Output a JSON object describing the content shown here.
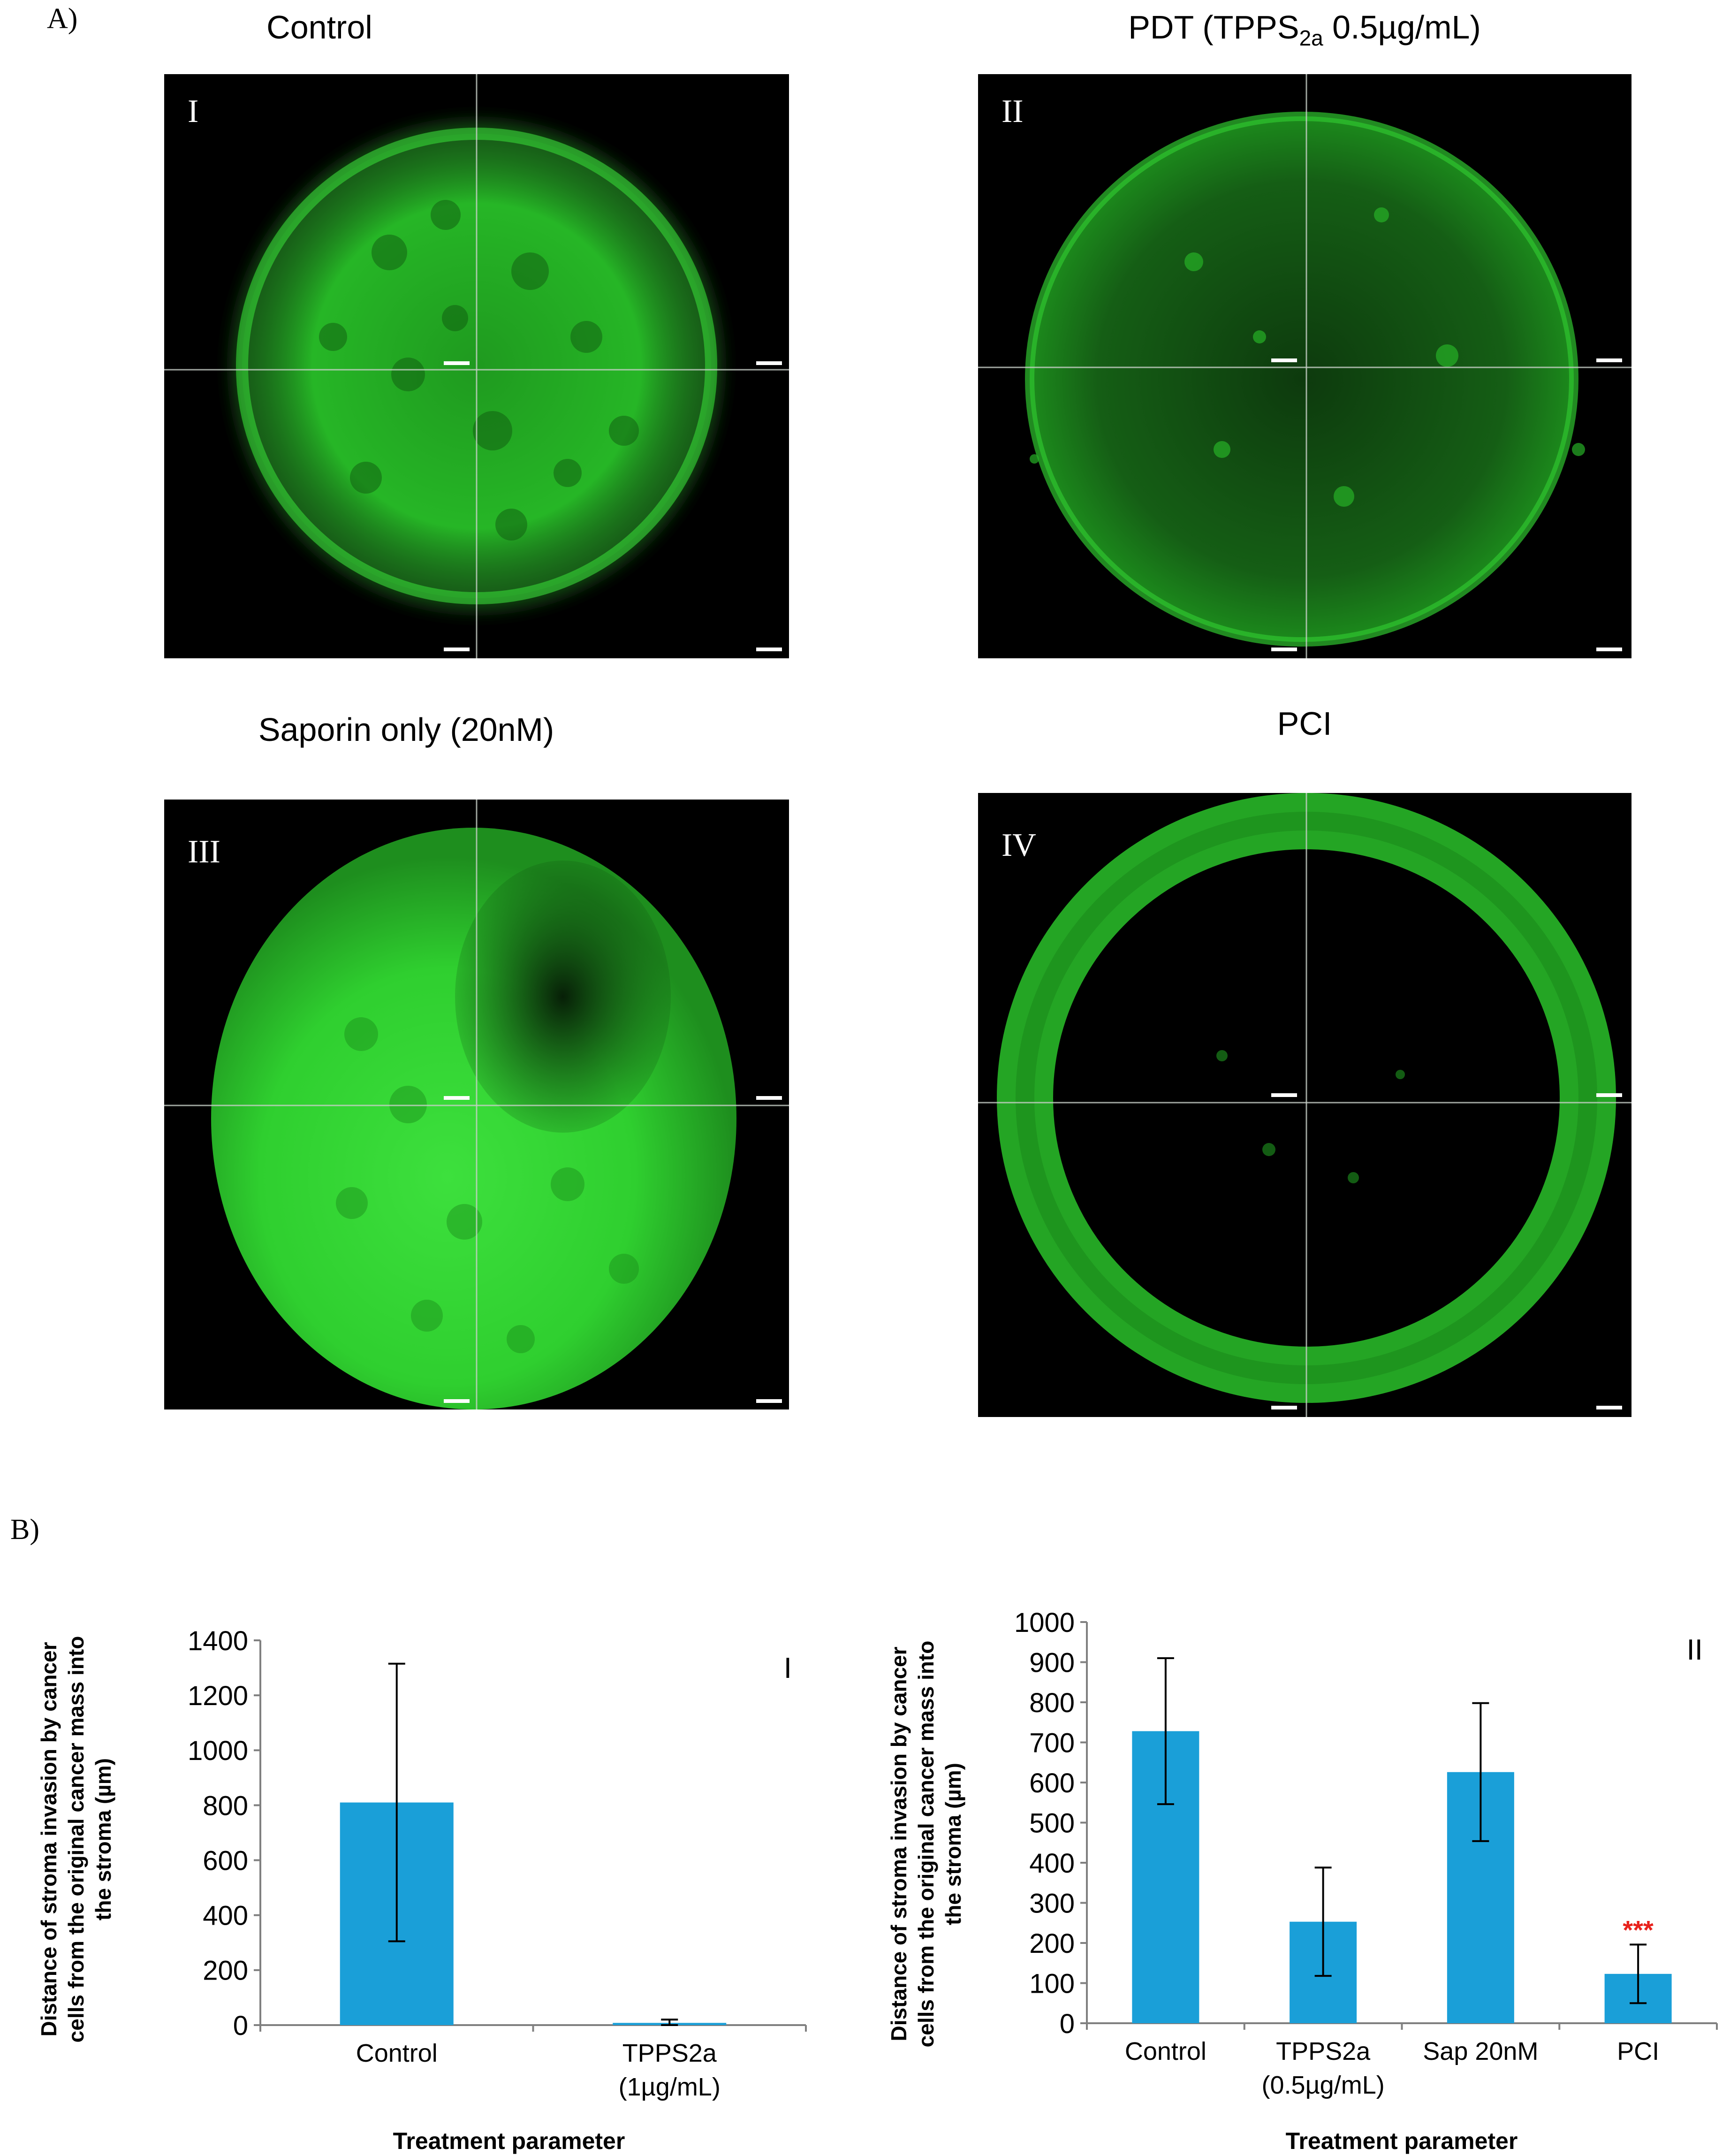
{
  "panel_labels": {
    "a": "A)",
    "b": "B)"
  },
  "micrographs": [
    {
      "id": "I",
      "title": "Control",
      "sub": "",
      "title_tail": ""
    },
    {
      "id": "II",
      "title": "PDT (TPPS",
      "sub": "2a",
      "title_tail": " 0.5µg/mL)"
    },
    {
      "id": "III",
      "title": "Saporin only (20nM)",
      "sub": "",
      "title_tail": ""
    },
    {
      "id": "IV",
      "title": "PCI",
      "sub": "",
      "title_tail": ""
    }
  ],
  "colors": {
    "bar": "#1a9fd8",
    "error_bar": "#000000",
    "significance": "#e8211c",
    "fluorescence": "#2ed62e"
  },
  "chart_data": [
    {
      "type": "bar",
      "panel": "I",
      "categories": [
        {
          "line1": "Control",
          "line2": ""
        },
        {
          "line1": "TPPS2a",
          "line2": "(1µg/mL)"
        }
      ],
      "values": [
        810,
        8
      ],
      "errors": [
        505,
        12
      ],
      "ylim": [
        0,
        1400
      ],
      "yticks": [
        0,
        200,
        400,
        600,
        800,
        1000,
        1200,
        1400
      ],
      "ylabel": [
        "Distance of stroma invasion by cancer",
        "cells from the original cancer mass into",
        "the stroma (µm)"
      ],
      "xlabel": "Treatment parameter",
      "significance": [
        "",
        ""
      ],
      "grid": false
    },
    {
      "type": "bar",
      "panel": "II",
      "categories": [
        {
          "line1": "Control",
          "line2": ""
        },
        {
          "line1": "TPPS2a",
          "line2": "(0.5µg/mL)"
        },
        {
          "line1": "Sap 20nM",
          "line2": ""
        },
        {
          "line1": "PCI",
          "line2": ""
        }
      ],
      "values": [
        728,
        253,
        626,
        123
      ],
      "errors": [
        182,
        135,
        172,
        73
      ],
      "ylim": [
        0,
        1000
      ],
      "yticks": [
        0,
        100,
        200,
        300,
        400,
        500,
        600,
        700,
        800,
        900,
        1000
      ],
      "ylabel": [
        "Distance of stroma invasion  by cancer",
        "cells  from the original cancer mass into",
        "the stroma (µm)"
      ],
      "xlabel": "Treatment parameter",
      "significance": [
        "",
        "",
        "",
        "***"
      ],
      "grid": false
    }
  ]
}
